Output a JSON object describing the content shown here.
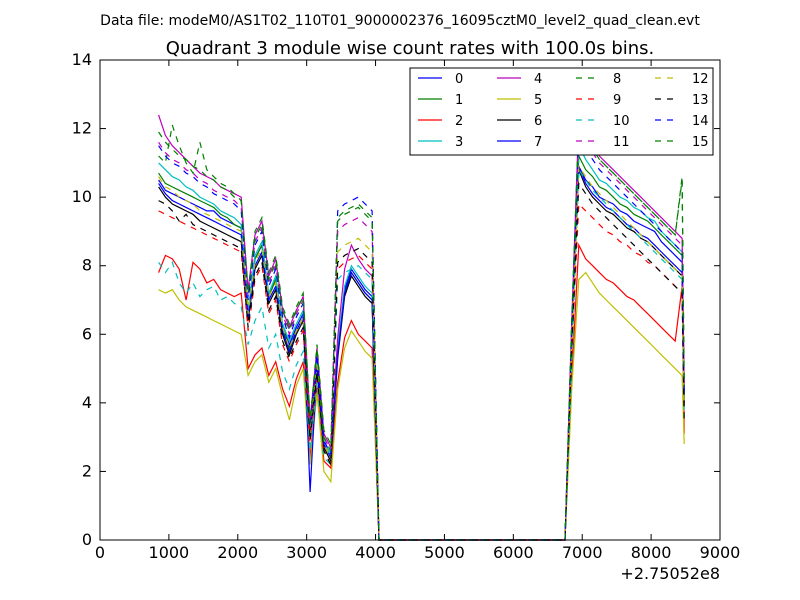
{
  "chart_data": {
    "type": "line",
    "suptitle": "Data file: modeM0/AS1T02_110T01_9000002376_16095cztM0_level2_quad_clean.evt",
    "title": "Quadrant 3 module wise count rates with 100.0s bins.",
    "xlabel": "",
    "ylabel": "",
    "x_offset_label": "+2.75052e8",
    "xlim": [
      0,
      9000
    ],
    "ylim": [
      0,
      14
    ],
    "x_ticks": [
      "0",
      "1000",
      "2000",
      "3000",
      "4000",
      "5000",
      "6000",
      "7000",
      "8000",
      "9000"
    ],
    "y_ticks": [
      "0",
      "2",
      "4",
      "6",
      "8",
      "10",
      "12",
      "14"
    ],
    "grid": false,
    "legend_position": "top-right",
    "legend_columns": 4,
    "x": [
      850,
      950,
      1050,
      1150,
      1250,
      1350,
      1450,
      1550,
      1650,
      1750,
      1850,
      1950,
      2050,
      2150,
      2250,
      2350,
      2450,
      2550,
      2650,
      2750,
      2850,
      2950,
      3050,
      3150,
      3250,
      3350,
      3450,
      3550,
      3650,
      3750,
      3850,
      3950,
      4050,
      4150,
      4350,
      4550,
      4750,
      4950,
      5150,
      5350,
      5550,
      5750,
      5950,
      6150,
      6350,
      6550,
      6750,
      6850,
      6950,
      7050,
      7150,
      7250,
      7350,
      7450,
      7550,
      7650,
      7750,
      7850,
      7950,
      8050,
      8150,
      8250,
      8350,
      8450,
      8480
    ],
    "series": [
      {
        "name": "0",
        "color": "#0000ff",
        "dash": "solid",
        "values": [
          10.5,
          10.2,
          10.1,
          10.0,
          9.9,
          9.8,
          9.7,
          9.6,
          9.6,
          9.4,
          9.3,
          9.2,
          9.1,
          6.6,
          8.2,
          8.6,
          7.1,
          7.6,
          6.2,
          5.7,
          6.2,
          6.6,
          3.2,
          5.1,
          2.9,
          2.5,
          5.5,
          7.3,
          7.9,
          7.6,
          7.3,
          7.1,
          0.0,
          0.0,
          0.0,
          0.0,
          0.0,
          0.0,
          0.0,
          0.0,
          0.0,
          0.0,
          0.0,
          0.0,
          0.0,
          0.0,
          0.0,
          6.0,
          10.9,
          10.5,
          10.3,
          10.0,
          9.9,
          9.8,
          9.6,
          9.5,
          9.3,
          9.2,
          9.1,
          9.0,
          8.7,
          8.5,
          8.3,
          8.1,
          4.0
        ]
      },
      {
        "name": "1",
        "color": "#008000",
        "dash": "solid",
        "values": [
          10.7,
          10.4,
          10.3,
          10.2,
          10.1,
          10.0,
          9.9,
          9.8,
          9.7,
          9.5,
          9.4,
          9.2,
          9.1,
          6.6,
          8.2,
          8.6,
          7.1,
          7.6,
          6.2,
          5.6,
          6.1,
          6.5,
          3.0,
          5.2,
          2.7,
          2.3,
          5.4,
          7.2,
          7.8,
          7.5,
          7.2,
          7.0,
          0.0,
          0.0,
          0.0,
          0.0,
          0.0,
          0.0,
          0.0,
          0.0,
          0.0,
          0.0,
          0.0,
          0.0,
          0.0,
          0.0,
          0.0,
          5.9,
          11.2,
          10.8,
          10.6,
          10.3,
          10.2,
          10.0,
          9.8,
          9.7,
          9.5,
          9.4,
          9.3,
          9.1,
          8.9,
          8.7,
          8.5,
          8.3,
          4.2
        ]
      },
      {
        "name": "2",
        "color": "#ff0000",
        "dash": "solid",
        "values": [
          7.8,
          8.3,
          8.2,
          7.9,
          7.0,
          8.1,
          7.9,
          7.5,
          7.6,
          7.3,
          7.2,
          7.1,
          7.2,
          5.0,
          5.4,
          5.6,
          4.8,
          5.2,
          4.4,
          3.9,
          4.7,
          5.2,
          2.4,
          4.5,
          2.3,
          2.1,
          4.6,
          5.9,
          6.4,
          6.0,
          5.8,
          5.6,
          0.0,
          0.0,
          0.0,
          0.0,
          0.0,
          0.0,
          0.0,
          0.0,
          0.0,
          0.0,
          0.0,
          0.0,
          0.0,
          0.0,
          0.0,
          4.8,
          8.6,
          8.2,
          8.0,
          7.8,
          7.6,
          7.5,
          7.3,
          7.1,
          7.0,
          6.8,
          6.6,
          6.4,
          6.2,
          6.0,
          5.8,
          7.4,
          3.1
        ]
      },
      {
        "name": "3",
        "color": "#00bfbf",
        "dash": "solid",
        "values": [
          11.0,
          10.8,
          10.6,
          10.5,
          10.3,
          10.2,
          10.0,
          9.9,
          9.8,
          9.6,
          9.5,
          9.4,
          9.2,
          6.7,
          8.3,
          8.7,
          7.2,
          7.7,
          6.3,
          5.8,
          6.3,
          6.7,
          3.2,
          5.3,
          2.9,
          2.5,
          5.6,
          7.4,
          8.0,
          7.7,
          7.4,
          7.2,
          0.0,
          0.0,
          0.0,
          0.0,
          0.0,
          0.0,
          0.0,
          0.0,
          0.0,
          0.0,
          0.0,
          0.0,
          0.0,
          0.0,
          0.0,
          6.1,
          11.5,
          11.1,
          10.8,
          10.5,
          10.4,
          10.2,
          10.0,
          9.9,
          9.7,
          9.6,
          9.4,
          9.3,
          9.0,
          8.8,
          8.6,
          8.4,
          4.3
        ]
      },
      {
        "name": "4",
        "color": "#bf00bf",
        "dash": "solid",
        "values": [
          12.4,
          11.8,
          11.5,
          11.3,
          11.1,
          10.9,
          10.7,
          10.6,
          10.5,
          10.3,
          10.2,
          10.1,
          10.0,
          7.3,
          8.9,
          9.3,
          7.7,
          8.2,
          6.7,
          6.2,
          6.7,
          7.1,
          3.5,
          5.6,
          3.1,
          2.7,
          5.9,
          7.9,
          8.6,
          8.2,
          7.9,
          7.7,
          0.0,
          0.0,
          0.0,
          0.0,
          0.0,
          0.0,
          0.0,
          0.0,
          0.0,
          0.0,
          0.0,
          0.0,
          0.0,
          0.0,
          0.0,
          6.5,
          12.3,
          11.8,
          11.5,
          11.2,
          11.0,
          10.8,
          10.6,
          10.4,
          10.2,
          10.0,
          9.8,
          9.6,
          9.4,
          9.2,
          9.0,
          8.8,
          4.5
        ]
      },
      {
        "name": "5",
        "color": "#bfbf00",
        "dash": "solid",
        "values": [
          7.3,
          7.2,
          7.3,
          7.0,
          6.8,
          6.7,
          6.6,
          6.5,
          6.4,
          6.3,
          6.2,
          6.1,
          6.0,
          4.8,
          5.2,
          5.4,
          4.6,
          5.0,
          4.2,
          3.5,
          4.5,
          5.0,
          2.2,
          4.3,
          2.0,
          1.7,
          4.4,
          5.6,
          6.1,
          5.8,
          5.5,
          5.3,
          0.0,
          0.0,
          0.0,
          0.0,
          0.0,
          0.0,
          0.0,
          0.0,
          0.0,
          0.0,
          0.0,
          0.0,
          0.0,
          0.0,
          0.0,
          4.5,
          7.6,
          7.8,
          7.5,
          7.2,
          7.0,
          6.8,
          6.6,
          6.4,
          6.2,
          6.0,
          5.8,
          5.6,
          5.4,
          5.2,
          5.0,
          4.8,
          2.8
        ]
      },
      {
        "name": "6",
        "color": "#000000",
        "dash": "solid",
        "values": [
          10.3,
          10.0,
          9.8,
          9.7,
          9.6,
          9.5,
          9.3,
          9.2,
          9.1,
          9.0,
          8.9,
          8.8,
          8.7,
          6.4,
          7.9,
          8.3,
          6.9,
          7.3,
          6.0,
          5.4,
          6.0,
          6.4,
          3.0,
          5.0,
          2.7,
          2.3,
          5.3,
          7.1,
          7.7,
          7.4,
          7.1,
          6.9,
          0.0,
          0.0,
          0.0,
          0.0,
          0.0,
          0.0,
          0.0,
          0.0,
          0.0,
          0.0,
          0.0,
          0.0,
          0.0,
          0.0,
          0.0,
          5.8,
          10.8,
          10.3,
          10.0,
          9.8,
          9.6,
          9.5,
          9.3,
          9.1,
          9.0,
          8.8,
          8.7,
          8.5,
          8.3,
          8.1,
          7.9,
          7.7,
          3.9
        ]
      },
      {
        "name": "7",
        "color": "#0000ff",
        "dash": "solid",
        "values": [
          10.4,
          10.1,
          9.9,
          9.8,
          9.7,
          9.6,
          9.5,
          9.4,
          9.3,
          9.2,
          9.1,
          9.0,
          8.9,
          6.5,
          8.0,
          8.4,
          7.0,
          7.4,
          6.1,
          5.5,
          6.1,
          6.5,
          1.4,
          5.1,
          2.8,
          2.4,
          5.4,
          7.2,
          7.8,
          7.5,
          7.2,
          7.0,
          0.0,
          0.0,
          0.0,
          0.0,
          0.0,
          0.0,
          0.0,
          0.0,
          0.0,
          0.0,
          0.0,
          0.0,
          0.0,
          0.0,
          0.0,
          5.9,
          10.9,
          10.4,
          10.1,
          9.9,
          9.7,
          9.6,
          9.4,
          9.2,
          9.1,
          8.9,
          8.8,
          8.6,
          8.4,
          8.2,
          8.0,
          7.8,
          4.0
        ]
      },
      {
        "name": "8",
        "color": "#008000",
        "dash": "dashed",
        "values": [
          11.2,
          11.0,
          12.1,
          11.5,
          11.0,
          10.7,
          11.6,
          10.8,
          10.6,
          10.4,
          10.3,
          10.1,
          9.9,
          7.2,
          9.0,
          9.4,
          7.8,
          8.3,
          6.8,
          6.3,
          6.8,
          7.2,
          3.5,
          5.7,
          3.2,
          2.8,
          9.3,
          9.5,
          9.6,
          9.7,
          9.5,
          9.3,
          0.0,
          0.0,
          0.0,
          0.0,
          0.0,
          0.0,
          0.0,
          0.0,
          0.0,
          0.0,
          0.0,
          0.0,
          0.0,
          0.0,
          0.0,
          6.6,
          12.2,
          11.7,
          11.4,
          11.1,
          10.9,
          10.7,
          10.5,
          10.3,
          10.1,
          9.9,
          9.7,
          9.5,
          9.3,
          9.1,
          8.9,
          10.5,
          4.6
        ]
      },
      {
        "name": "9",
        "color": "#ff0000",
        "dash": "dashed",
        "values": [
          9.6,
          9.5,
          9.4,
          9.3,
          9.2,
          9.1,
          9.0,
          8.9,
          8.8,
          8.7,
          8.6,
          8.5,
          8.4,
          6.1,
          7.6,
          8.0,
          6.6,
          7.0,
          5.7,
          5.2,
          5.7,
          6.1,
          2.9,
          4.8,
          2.6,
          2.2,
          7.9,
          8.1,
          8.2,
          8.3,
          8.1,
          7.9,
          0.0,
          0.0,
          0.0,
          0.0,
          0.0,
          0.0,
          0.0,
          0.0,
          0.0,
          0.0,
          0.0,
          0.0,
          0.0,
          0.0,
          0.0,
          5.6,
          9.8,
          9.6,
          9.4,
          9.2,
          9.0,
          8.9,
          8.7,
          8.6,
          8.4,
          8.3,
          8.1,
          8.0,
          7.8,
          7.6,
          7.4,
          7.2,
          3.7
        ]
      },
      {
        "name": "10",
        "color": "#00bfbf",
        "dash": "dashed",
        "values": [
          8.1,
          7.8,
          8.1,
          7.5,
          7.2,
          7.5,
          7.1,
          7.3,
          7.4,
          7.0,
          7.1,
          6.9,
          6.8,
          5.7,
          6.4,
          6.8,
          5.6,
          6.0,
          4.9,
          4.4,
          5.1,
          5.5,
          2.6,
          4.6,
          2.4,
          2.2,
          7.6,
          7.8,
          7.9,
          8.0,
          7.8,
          7.6,
          0.0,
          0.0,
          0.0,
          0.0,
          0.0,
          0.0,
          0.0,
          0.0,
          0.0,
          0.0,
          0.0,
          0.0,
          0.0,
          0.0,
          0.0,
          5.2,
          10.8,
          10.5,
          10.2,
          10.0,
          9.8,
          9.6,
          9.4,
          9.2,
          9.0,
          8.8,
          8.6,
          8.4,
          8.2,
          8.0,
          7.8,
          7.6,
          3.8
        ]
      },
      {
        "name": "11",
        "color": "#bf00bf",
        "dash": "dashed",
        "values": [
          11.6,
          11.3,
          11.1,
          11.0,
          10.8,
          10.7,
          10.5,
          10.4,
          10.2,
          10.1,
          10.0,
          9.9,
          9.7,
          7.1,
          8.7,
          9.1,
          7.5,
          8.0,
          6.6,
          6.0,
          6.6,
          7.0,
          3.4,
          5.5,
          3.0,
          2.6,
          9.0,
          9.2,
          9.3,
          9.4,
          9.2,
          9.0,
          0.0,
          0.0,
          0.0,
          0.0,
          0.0,
          0.0,
          0.0,
          0.0,
          0.0,
          0.0,
          0.0,
          0.0,
          0.0,
          0.0,
          0.0,
          6.3,
          12.0,
          11.6,
          11.3,
          11.0,
          10.8,
          10.6,
          10.4,
          10.2,
          10.0,
          9.8,
          9.6,
          9.4,
          9.2,
          9.0,
          8.8,
          8.6,
          4.4
        ]
      },
      {
        "name": "12",
        "color": "#bfbf00",
        "dash": "dashed",
        "values": [
          10.6,
          10.3,
          10.2,
          10.0,
          9.9,
          9.8,
          9.6,
          9.5,
          9.4,
          9.3,
          9.2,
          9.1,
          9.0,
          6.6,
          8.1,
          8.5,
          7.1,
          7.5,
          6.2,
          5.6,
          6.1,
          6.5,
          3.1,
          5.1,
          2.8,
          2.4,
          8.4,
          8.6,
          8.7,
          8.8,
          8.6,
          8.4,
          0.0,
          0.0,
          0.0,
          0.0,
          0.0,
          0.0,
          0.0,
          0.0,
          0.0,
          0.0,
          0.0,
          0.0,
          0.0,
          0.0,
          0.0,
          5.9,
          10.9,
          10.6,
          10.3,
          10.1,
          9.9,
          9.7,
          9.5,
          9.3,
          9.1,
          8.9,
          8.7,
          8.5,
          8.3,
          8.1,
          7.9,
          7.7,
          3.9
        ]
      },
      {
        "name": "13",
        "color": "#000000",
        "dash": "dashed",
        "values": [
          9.9,
          9.8,
          9.6,
          9.3,
          9.5,
          9.2,
          9.1,
          9.0,
          8.9,
          8.8,
          8.7,
          8.6,
          8.5,
          6.2,
          7.7,
          8.1,
          6.7,
          7.1,
          5.8,
          5.3,
          5.8,
          6.2,
          2.9,
          4.9,
          2.6,
          2.2,
          8.1,
          8.3,
          8.4,
          8.5,
          8.3,
          8.1,
          0.0,
          0.0,
          0.0,
          0.0,
          0.0,
          0.0,
          0.0,
          0.0,
          0.0,
          0.0,
          0.0,
          0.0,
          0.0,
          0.0,
          0.0,
          5.7,
          10.4,
          10.1,
          9.8,
          9.6,
          9.4,
          9.2,
          9.0,
          8.8,
          8.6,
          8.4,
          8.2,
          8.0,
          7.8,
          7.6,
          7.4,
          7.2,
          3.5
        ]
      },
      {
        "name": "14",
        "color": "#0000ff",
        "dash": "dashed",
        "values": [
          11.5,
          11.2,
          11.0,
          10.9,
          10.7,
          10.6,
          10.4,
          10.3,
          10.1,
          10.0,
          9.9,
          9.8,
          9.6,
          7.0,
          8.6,
          9.0,
          7.4,
          7.9,
          6.5,
          5.9,
          6.5,
          6.9,
          3.3,
          5.4,
          2.9,
          2.5,
          9.6,
          9.8,
          9.9,
          10.0,
          9.8,
          9.6,
          0.0,
          0.0,
          0.0,
          0.0,
          0.0,
          0.0,
          0.0,
          0.0,
          0.0,
          0.0,
          0.0,
          0.0,
          0.0,
          0.0,
          0.0,
          6.3,
          11.8,
          11.4,
          11.1,
          10.8,
          10.6,
          10.4,
          10.2,
          10.0,
          9.8,
          9.6,
          9.4,
          9.2,
          9.0,
          8.8,
          8.6,
          8.4,
          4.3
        ]
      },
      {
        "name": "15",
        "color": "#008000",
        "dash": "dashed",
        "values": [
          11.9,
          11.6,
          11.4,
          11.2,
          11.1,
          10.9,
          10.8,
          10.6,
          10.5,
          10.3,
          10.2,
          10.0,
          9.9,
          7.2,
          8.8,
          9.2,
          7.6,
          8.1,
          6.7,
          6.1,
          6.7,
          7.1,
          3.4,
          5.6,
          3.0,
          2.6,
          9.4,
          9.6,
          9.7,
          9.8,
          9.6,
          9.4,
          0.0,
          0.0,
          0.0,
          0.0,
          0.0,
          0.0,
          0.0,
          0.0,
          0.0,
          0.0,
          0.0,
          0.0,
          0.0,
          0.0,
          0.0,
          6.4,
          12.1,
          11.7,
          11.4,
          11.1,
          10.9,
          10.7,
          10.5,
          10.3,
          10.1,
          9.9,
          9.7,
          9.5,
          9.3,
          9.1,
          8.9,
          10.6,
          4.5
        ]
      }
    ]
  }
}
